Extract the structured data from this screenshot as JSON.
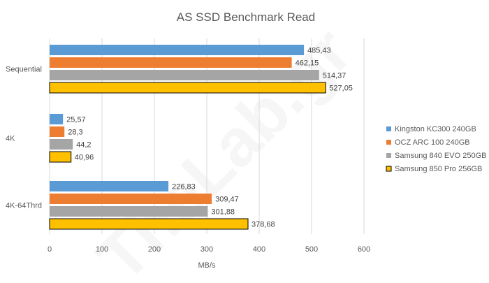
{
  "chart_data": {
    "type": "bar",
    "orientation": "horizontal",
    "title": "AS SSD Benchmark Read",
    "xlabel": "MB/s",
    "ylabel": "",
    "xlim": [
      0,
      600
    ],
    "x_ticks": [
      0,
      100,
      200,
      300,
      400,
      500,
      600
    ],
    "grid": "vertical",
    "legend_position": "right",
    "watermark": "TheLab.gr",
    "categories": [
      "Sequential",
      "4K",
      "4K-64Thrd"
    ],
    "series": [
      {
        "name": "Kingston KC300 240GB",
        "color": "#5b9bd5",
        "values": [
          485.43,
          25.57,
          226.83
        ],
        "labels": [
          "485,43",
          "25,57",
          "226,83"
        ]
      },
      {
        "name": "OCZ ARC 100 240GB",
        "color": "#ed7d31",
        "values": [
          462.15,
          28.3,
          309.47
        ],
        "labels": [
          "462,15",
          "28,3",
          "309,47"
        ]
      },
      {
        "name": "Samsung 840 EVO 250GB",
        "color": "#a5a5a5",
        "values": [
          514.37,
          44.2,
          301.88
        ],
        "labels": [
          "514,37",
          "44,2",
          "301,88"
        ]
      },
      {
        "name": "Samsung 850 Pro 256GB",
        "color": "#ffc000",
        "border": "#000000",
        "values": [
          527.05,
          40.96,
          378.68
        ],
        "labels": [
          "527,05",
          "40,96",
          "378,68"
        ]
      }
    ]
  }
}
